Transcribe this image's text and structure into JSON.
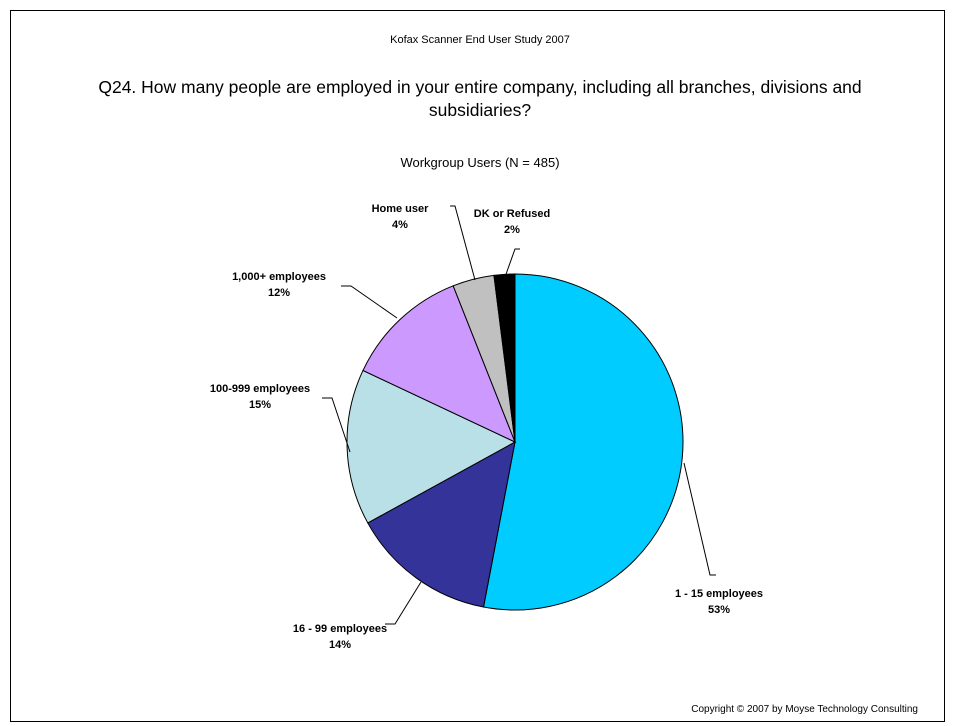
{
  "header": {
    "study": "Kofax Scanner End User Study 2007",
    "question": "Q24.  How many people are employed in your entire company, including all branches, divisions and subsidiaries?",
    "subtitle": "Workgroup Users (N = 485)"
  },
  "footer": {
    "copyright": "Copyright © 2007 by Moyse Technology Consulting"
  },
  "chart_data": {
    "type": "pie",
    "title": "Workgroup Users (N = 485)",
    "start_angle_deg": 0,
    "direction": "clockwise",
    "slices": [
      {
        "name": "1 - 15 employees",
        "label": "53%",
        "value": 53,
        "color": "#00ccff"
      },
      {
        "name": "16 - 99 employees",
        "label": "14%",
        "value": 14,
        "color": "#333399"
      },
      {
        "name": "100-999 employees",
        "label": "15%",
        "value": 15,
        "color": "#b8e0e6"
      },
      {
        "name": "1,000+ employees",
        "label": "12%",
        "value": 12,
        "color": "#cc99ff"
      },
      {
        "name": "Home user",
        "label": "4%",
        "value": 4,
        "color": "#c0c0c0"
      },
      {
        "name": "DK or Refused",
        "label": "2%",
        "value": 2,
        "color": "#000000"
      }
    ]
  }
}
